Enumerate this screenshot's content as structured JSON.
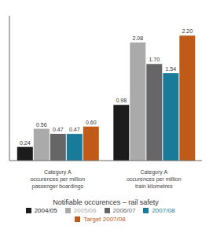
{
  "chart_data": {
    "type": "bar",
    "xlabel": "Notifiable occurences – rail safety",
    "categories": [
      "Category A\noccurences per million\npassenger boardings",
      "Category A\noccurences per million\ntrain kilometres"
    ],
    "series": [
      {
        "name": "2004/05",
        "color": "#1c1c1c",
        "values": [
          0.24,
          0.98
        ],
        "value_labels": [
          "0.24",
          "0.98"
        ]
      },
      {
        "name": "2005/06",
        "color": "#aaaaaa",
        "values": [
          0.56,
          2.08
        ],
        "value_labels": [
          "0.56",
          "2.08"
        ]
      },
      {
        "name": "2006/07",
        "color": "#666666",
        "values": [
          0.47,
          1.7
        ],
        "value_labels": [
          "0.47",
          "1.70"
        ]
      },
      {
        "name": "2007/08",
        "color": "#1a7a9a",
        "values": [
          0.47,
          1.54
        ],
        "value_labels": [
          "0.47",
          "1.54"
        ]
      },
      {
        "name": "Target 2007/08",
        "color": "#c05a18",
        "values": [
          0.6,
          2.2
        ],
        "value_labels": [
          "0.60",
          "2.20"
        ]
      }
    ],
    "ylim": [
      0,
      2.55
    ],
    "data_labels": true,
    "tick_labels": "x",
    "grid": false,
    "legend": "bottom"
  }
}
